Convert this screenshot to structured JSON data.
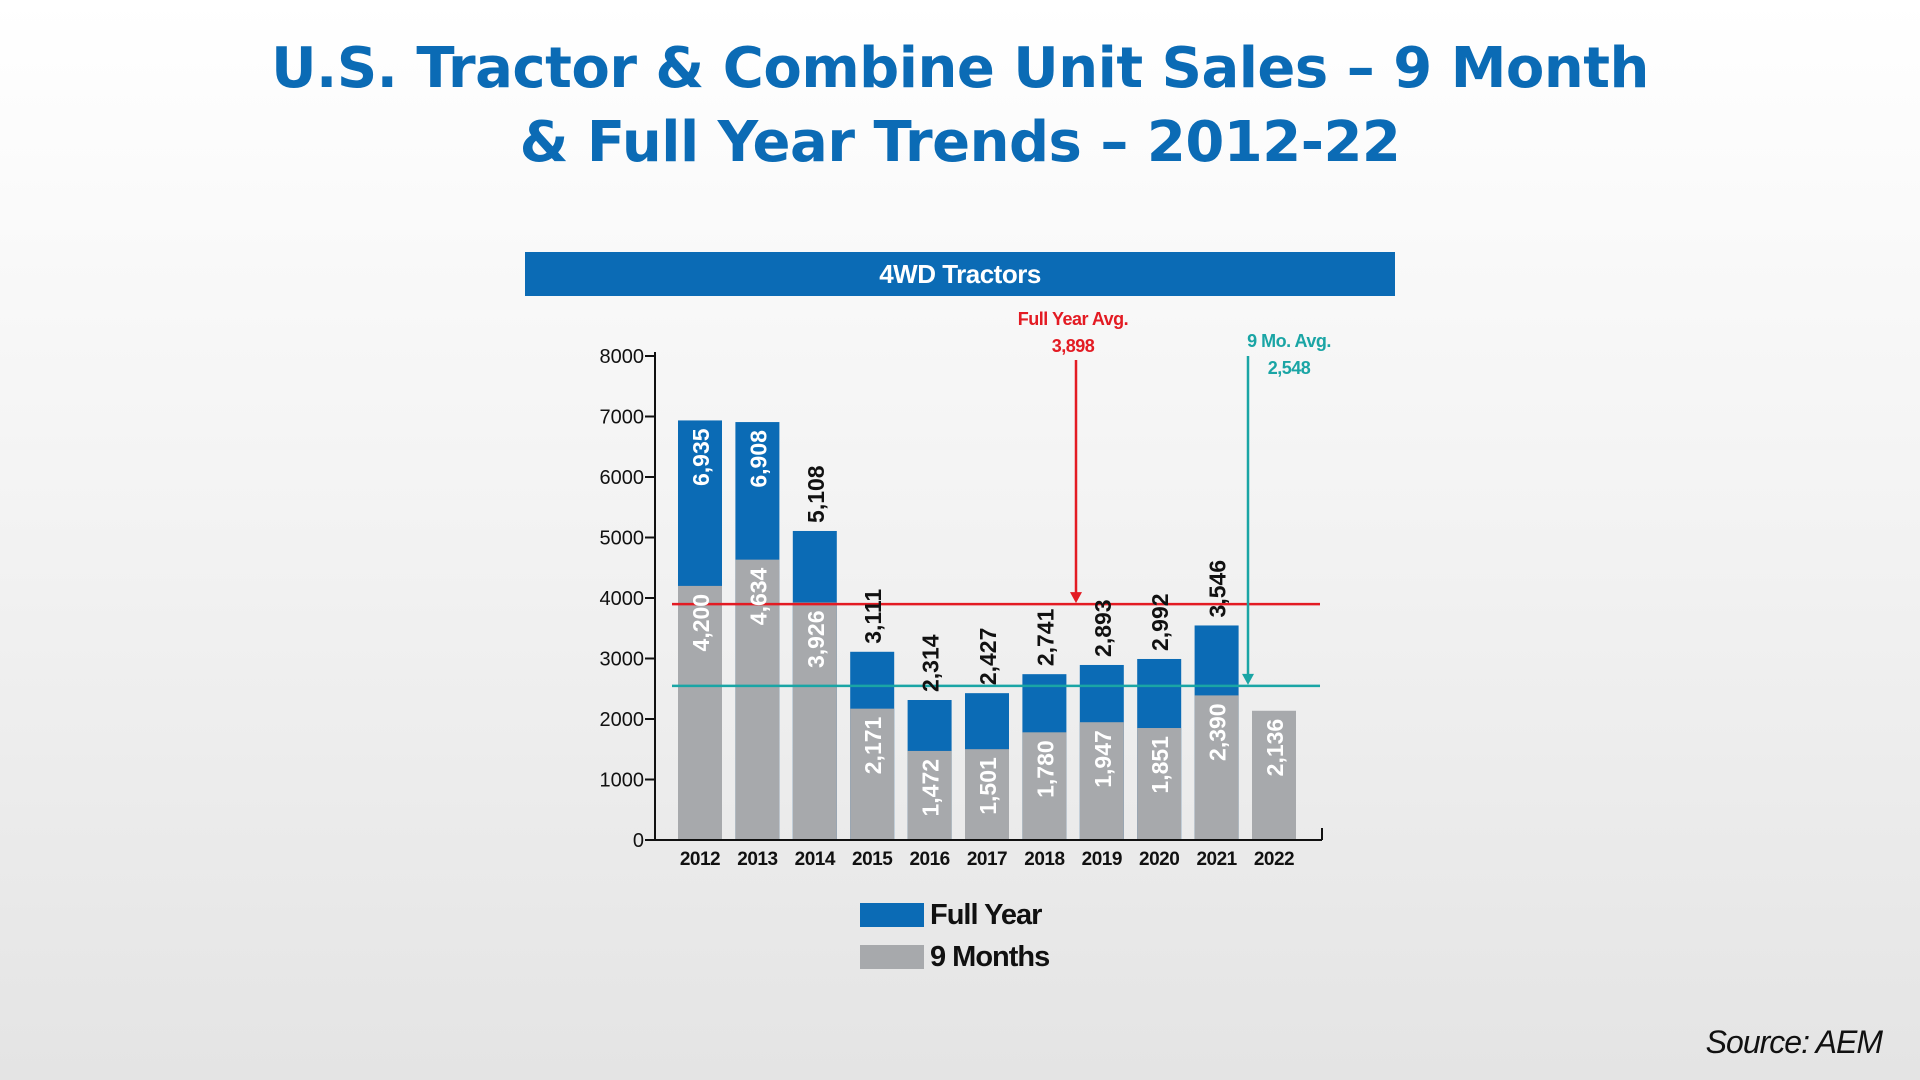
{
  "chart_data": {
    "type": "bar",
    "stacked": false,
    "overlay": true,
    "title": "U.S. Tractor & Combine Unit Sales – 9 Month & Full Year Trends – 2012-22",
    "title_lines": [
      "U.S. Tractor & Combine Unit Sales – 9 Month",
      "& Full Year Trends – 2012-22"
    ],
    "subtitle": "4WD Tractors",
    "categories": [
      "2012",
      "2013",
      "2014",
      "2015",
      "2016",
      "2017",
      "2018",
      "2019",
      "2020",
      "2021",
      "2022"
    ],
    "series": [
      {
        "name": "Full Year",
        "color": "#0B6BB5",
        "values": [
          6935,
          6908,
          5108,
          3111,
          2314,
          2427,
          2741,
          2893,
          2992,
          3546,
          null
        ],
        "labels": [
          "6,935",
          "6,908",
          "5,108",
          "3,111",
          "2,314",
          "2,427",
          "2,741",
          "2,893",
          "2,992",
          "3,546",
          null
        ]
      },
      {
        "name": "9 Months",
        "color": "#A7A9AC",
        "values": [
          4200,
          4634,
          3926,
          2171,
          1472,
          1501,
          1780,
          1947,
          1851,
          2390,
          2136
        ],
        "labels": [
          "4,200",
          "4,634",
          "3,926",
          "2,171",
          "1,472",
          "1,501",
          "1,780",
          "1,947",
          "1,851",
          "2,390",
          "2,136"
        ]
      }
    ],
    "ylim": [
      0,
      8000
    ],
    "yticks": [
      "0",
      "1000",
      "2000",
      "3000",
      "4000",
      "5000",
      "6000",
      "7000",
      "8000"
    ],
    "xlabel": "",
    "ylabel": "",
    "grid": false,
    "legend": "bottom",
    "reference_lines": [
      {
        "name_line1": "Full Year Avg.",
        "name_line2": "3,898",
        "value": 3898,
        "color": "#E31B23",
        "arrow_at_category": "2018"
      },
      {
        "name_line1": "9 Mo. Avg.",
        "name_line2": "2,548",
        "value": 2548,
        "color": "#1AA5A5",
        "arrow_at_category": "2021"
      }
    ],
    "source": "Source: AEM"
  }
}
